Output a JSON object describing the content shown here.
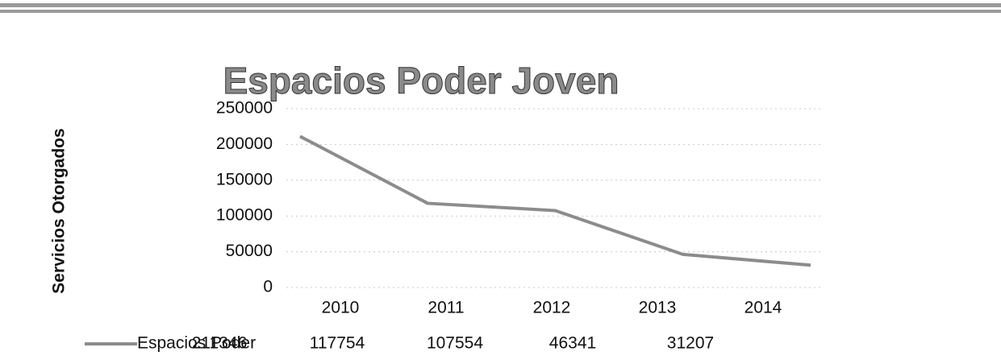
{
  "chart_data": {
    "type": "line",
    "title": "Espacios Poder Joven",
    "y_label": "Servicios Otorgados",
    "categories": [
      "2010",
      "2011",
      "2012",
      "2013",
      "2014"
    ],
    "series": [
      {
        "name": "Espacios Poder",
        "color": "#8c8c8c",
        "values": [
          211346,
          117754,
          107554,
          46341,
          31207
        ]
      }
    ],
    "ylim": [
      0,
      250000
    ],
    "yticks": [
      0,
      50000,
      100000,
      150000,
      200000,
      250000
    ],
    "grid": true,
    "data_table": true
  }
}
